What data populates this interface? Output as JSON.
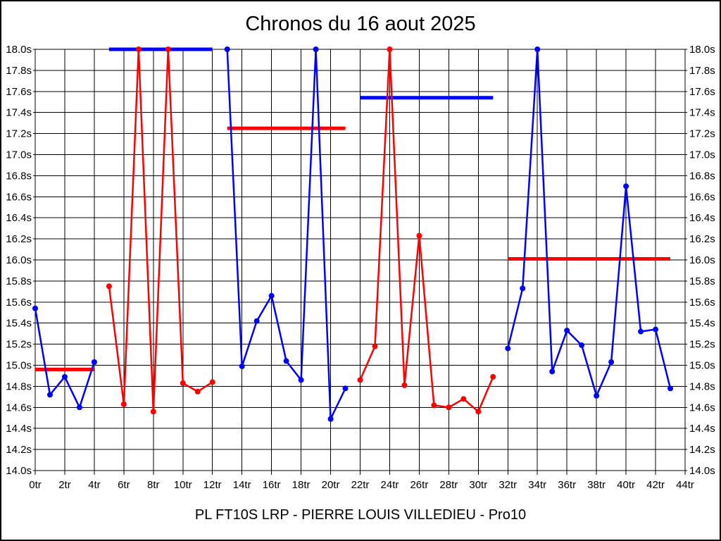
{
  "chart_data": {
    "type": "line",
    "title": "Chronos du 16 aout 2025",
    "caption": "PL FT10S LRP - PIERRE LOUIS VILLEDIEU - Pro10",
    "x_unit": "tr",
    "y_unit": "s",
    "xlim": [
      0,
      44
    ],
    "ylim": [
      14.0,
      18.0
    ],
    "grid": true,
    "legend": "none",
    "x_ticks": [
      0,
      2,
      4,
      6,
      8,
      10,
      12,
      14,
      16,
      18,
      20,
      22,
      24,
      26,
      28,
      30,
      32,
      34,
      36,
      38,
      40,
      42,
      44
    ],
    "x_tick_labels": [
      "0tr",
      "2tr",
      "4tr",
      "6tr",
      "8tr",
      "10tr",
      "12tr",
      "14tr",
      "16tr",
      "18tr",
      "20tr",
      "22tr",
      "24tr",
      "26tr",
      "28tr",
      "30tr",
      "32tr",
      "34tr",
      "36tr",
      "38tr",
      "40tr",
      "42tr",
      "44tr"
    ],
    "y_ticks": [
      14.0,
      14.2,
      14.4,
      14.6,
      14.8,
      15.0,
      15.2,
      15.4,
      15.6,
      15.8,
      16.0,
      16.2,
      16.4,
      16.6,
      16.8,
      17.0,
      17.2,
      17.4,
      17.6,
      17.8,
      18.0
    ],
    "y_tick_labels": [
      "14.0s",
      "14.2s",
      "14.4s",
      "14.6s",
      "14.8s",
      "15.0s",
      "15.2s",
      "15.4s",
      "15.6s",
      "15.8s",
      "16.0s",
      "16.2s",
      "16.4s",
      "16.6s",
      "16.8s",
      "17.0s",
      "17.2s",
      "17.4s",
      "17.6s",
      "17.8s",
      "18.0s"
    ],
    "colors": {
      "blue_series": "#0000ff",
      "red_series": "#ff0000",
      "grid": "#000000",
      "text": "#000000",
      "background": "#ffffff"
    },
    "series": [
      {
        "name": "blue-run",
        "color": "#0000ff",
        "runs": [
          [
            [
              0,
              15.54
            ],
            [
              1,
              14.72
            ],
            [
              2,
              14.89
            ],
            [
              3,
              14.6
            ],
            [
              4,
              15.03
            ]
          ],
          [
            [
              13,
              18.0
            ],
            [
              14,
              14.99
            ],
            [
              15,
              15.42
            ],
            [
              16,
              15.66
            ],
            [
              17,
              15.04
            ],
            [
              18,
              14.86
            ],
            [
              19,
              18.0
            ],
            [
              20,
              14.49
            ],
            [
              21,
              14.78
            ]
          ],
          [
            [
              32,
              15.16
            ],
            [
              33,
              15.73
            ],
            [
              34,
              18.0
            ],
            [
              35,
              14.94
            ],
            [
              36,
              15.33
            ],
            [
              37,
              15.19
            ],
            [
              38,
              14.71
            ],
            [
              39,
              15.03
            ],
            [
              40,
              16.7
            ],
            [
              41,
              15.32
            ],
            [
              42,
              15.34
            ],
            [
              43,
              14.78
            ]
          ]
        ]
      },
      {
        "name": "red-run",
        "color": "#ff0000",
        "runs": [
          [
            [
              5,
              15.75
            ],
            [
              6,
              14.63
            ],
            [
              7,
              18.0
            ],
            [
              8,
              14.56
            ],
            [
              9,
              18.0
            ],
            [
              10,
              14.83
            ],
            [
              11,
              14.75
            ],
            [
              12,
              14.84
            ]
          ],
          [
            [
              22,
              14.86
            ],
            [
              23,
              15.18
            ],
            [
              24,
              18.0
            ],
            [
              25,
              14.81
            ],
            [
              26,
              16.23
            ],
            [
              27,
              14.62
            ],
            [
              28,
              14.6
            ],
            [
              29,
              14.68
            ],
            [
              30,
              14.56
            ],
            [
              31,
              14.89
            ]
          ]
        ]
      }
    ],
    "mean_segments": [
      {
        "x1": 0,
        "x2": 4,
        "y": 14.96,
        "color": "#ff0000"
      },
      {
        "x1": 5,
        "x2": 12,
        "y": 18.0,
        "color": "#0000ff"
      },
      {
        "x1": 13,
        "x2": 21,
        "y": 17.25,
        "color": "#ff0000"
      },
      {
        "x1": 22,
        "x2": 31,
        "y": 17.54,
        "color": "#0000ff"
      },
      {
        "x1": 32,
        "x2": 43,
        "y": 16.01,
        "color": "#ff0000"
      }
    ]
  }
}
